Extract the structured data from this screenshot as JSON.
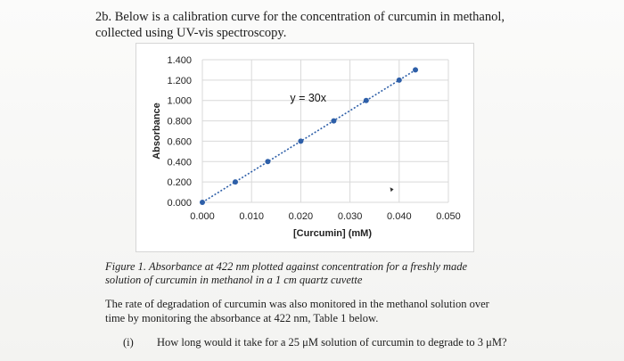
{
  "question": {
    "title": "2b. Below is a calibration curve for the concentration of curcumin in methanol, collected using UV-vis spectroscopy."
  },
  "chart_data": {
    "type": "scatter",
    "xlabel": "[Curcumin] (mM)",
    "ylabel": "Absorbance",
    "xlim": [
      0,
      0.05
    ],
    "ylim": [
      0,
      1.4
    ],
    "x_ticks": [
      "0.000",
      "0.010",
      "0.020",
      "0.030",
      "0.040",
      "0.050"
    ],
    "y_ticks": [
      "0.000",
      "0.200",
      "0.400",
      "0.600",
      "0.800",
      "1.000",
      "1.200",
      "1.400"
    ],
    "grid": true,
    "series": [
      {
        "x": [
          0.0,
          0.0067,
          0.0133,
          0.02,
          0.0267,
          0.0333,
          0.04,
          0.0433
        ],
        "y": [
          0.0,
          0.2,
          0.4,
          0.6,
          0.8,
          1.0,
          1.2,
          1.3
        ]
      }
    ],
    "trendline": {
      "type": "linear",
      "slope": 30,
      "label": "y = 30x"
    },
    "marker_color": "#2e5fa8",
    "trendline_color": "#2e5fa8"
  },
  "caption": "Figure 1. Absorbance at 422 nm plotted against concentration for a freshly made solution of curcumin in methanol in a 1 cm quartz cuvette",
  "paragraph": "The rate of degradation of curcumin was also monitored in the methanol solution over time by monitoring the absorbance at 422 nm, Table 1 below.",
  "sub_question": {
    "number": "(i)",
    "text": "How long would it take for a 25 μM solution of curcumin to degrade to 3 μM?"
  }
}
